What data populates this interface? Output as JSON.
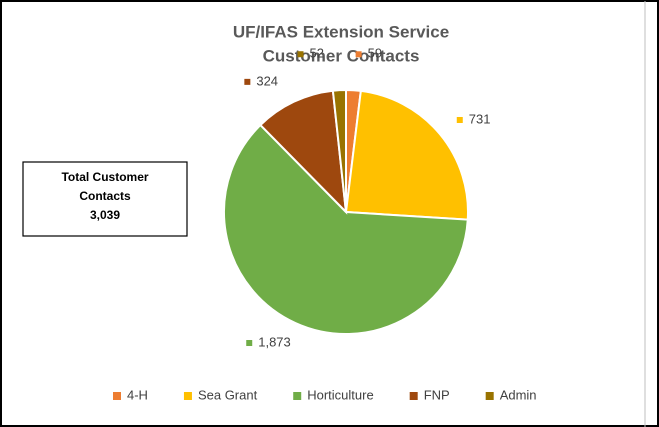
{
  "chart_data": {
    "type": "pie",
    "title": [
      "UF/IFAS Extension Service",
      "Customer Contacts"
    ],
    "categories": [
      "4-H",
      "Sea Grant",
      "Horticulture",
      "FNP",
      "Admin"
    ],
    "values": [
      59,
      731,
      1873,
      324,
      52
    ],
    "value_labels": [
      "59",
      "731",
      "1,873",
      "324",
      "52"
    ],
    "colors": [
      "#ed7d31",
      "#ffc000",
      "#70ad47",
      "#9e480e",
      "#997300"
    ],
    "annotation": [
      "Total Customer",
      "Contacts",
      "3,039"
    ],
    "legend": "bottom"
  }
}
